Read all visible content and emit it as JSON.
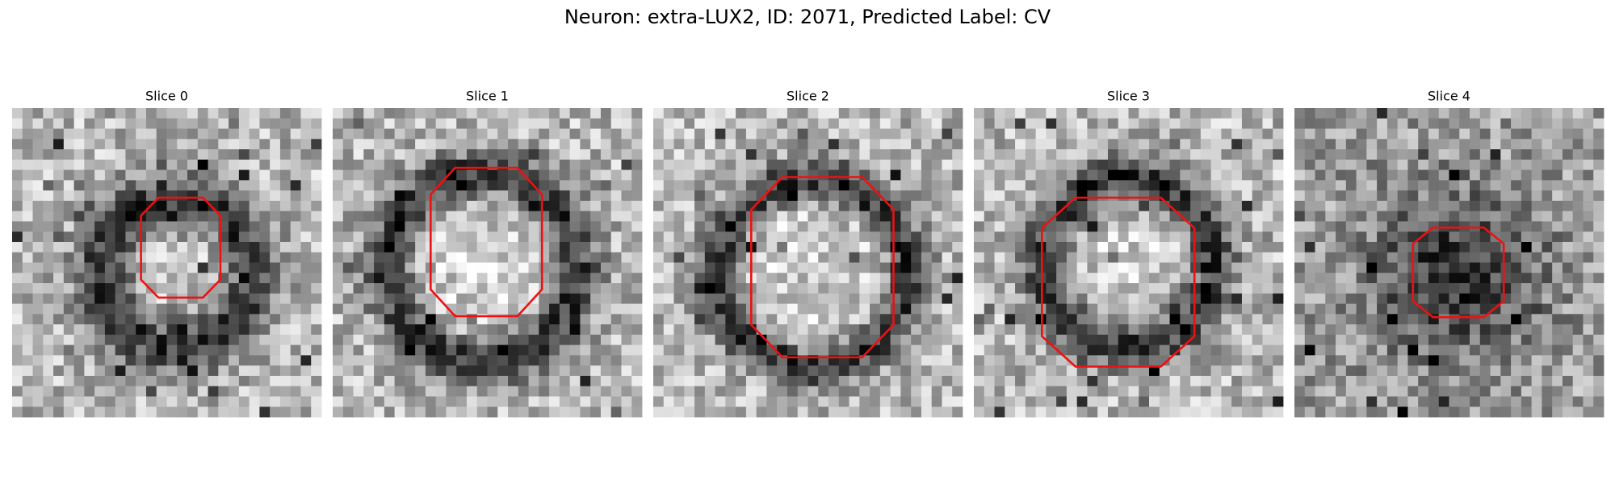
{
  "title": "Neuron: extra-LUX2, ID: 2071, Predicted Label: CV",
  "panels": [
    {
      "title": "Slice 0"
    },
    {
      "title": "Slice 1"
    },
    {
      "title": "Slice 2"
    },
    {
      "title": "Slice 3"
    },
    {
      "title": "Slice 4"
    }
  ]
}
